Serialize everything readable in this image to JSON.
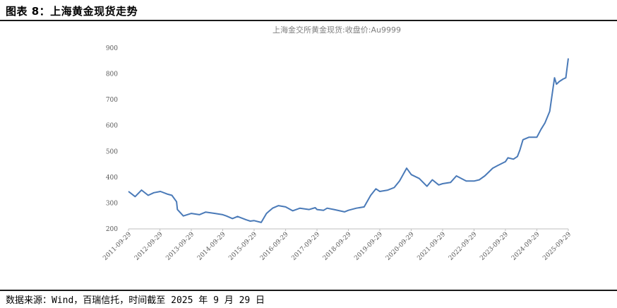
{
  "figure": {
    "label": "图表 8：上海黄金现货走势",
    "source": "数据来源：Wind，百瑞信托，时间截至 2025 年 9 月 29 日"
  },
  "chart_data": {
    "type": "line",
    "title": "上海金交所黄金现货:收盘价:Au9999",
    "xlabel": "",
    "ylabel": "",
    "ylim": [
      200,
      900
    ],
    "yticks": [
      200,
      300,
      400,
      500,
      600,
      700,
      800,
      900
    ],
    "xticks": [
      "2011-09-29",
      "2012-09-29",
      "2013-09-29",
      "2014-09-29",
      "2015-09-29",
      "2016-09-29",
      "2017-09-29",
      "2018-09-29",
      "2019-09-29",
      "2020-09-29",
      "2021-09-29",
      "2022-09-29",
      "2023-09-29",
      "2024-09-29",
      "2025-09-29"
    ],
    "grid": false,
    "legend": "none",
    "line_color": "#4a7ab8",
    "series": [
      {
        "x": [
          "2011-09-29",
          "2011-12-15",
          "2012-02-28",
          "2012-05-15",
          "2012-07-20",
          "2012-10-05",
          "2012-12-20",
          "2013-02-15",
          "2013-04-10",
          "2013-04-20",
          "2013-06-28",
          "2013-09-29",
          "2013-12-31",
          "2014-03-15",
          "2014-06-30",
          "2014-09-29",
          "2014-11-10",
          "2015-01-20",
          "2015-03-20",
          "2015-06-30",
          "2015-08-15",
          "2015-09-29",
          "2015-12-20",
          "2016-02-20",
          "2016-04-30",
          "2016-07-08",
          "2016-09-29",
          "2016-12-20",
          "2017-03-15",
          "2017-06-30",
          "2017-09-08",
          "2017-09-29",
          "2017-12-15",
          "2018-01-25",
          "2018-04-15",
          "2018-08-15",
          "2018-09-29",
          "2018-12-31",
          "2019-03-31",
          "2019-06-15",
          "2019-08-15",
          "2019-09-29",
          "2019-12-31",
          "2020-03-15",
          "2020-05-15",
          "2020-08-06",
          "2020-09-29",
          "2020-12-31",
          "2021-03-31",
          "2021-06-01",
          "2021-08-15",
          "2021-09-29",
          "2021-12-31",
          "2022-03-08",
          "2022-06-30",
          "2022-09-29",
          "2022-11-30",
          "2023-02-01",
          "2023-03-20",
          "2023-05-04",
          "2023-06-30",
          "2023-09-29",
          "2023-10-28",
          "2023-12-31",
          "2024-02-15",
          "2024-03-15",
          "2024-04-20",
          "2024-06-30",
          "2024-09-29",
          "2024-11-15",
          "2024-12-31",
          "2025-02-25",
          "2025-04-22",
          "2025-05-15",
          "2025-06-15",
          "2025-07-31",
          "2025-08-31",
          "2025-09-29"
        ],
        "values": [
          345,
          325,
          350,
          330,
          340,
          345,
          335,
          330,
          305,
          275,
          250,
          260,
          255,
          265,
          260,
          255,
          250,
          240,
          248,
          235,
          230,
          232,
          225,
          260,
          280,
          290,
          285,
          270,
          280,
          275,
          282,
          275,
          272,
          280,
          275,
          266,
          272,
          280,
          285,
          330,
          355,
          345,
          350,
          360,
          385,
          435,
          410,
          395,
          365,
          390,
          370,
          375,
          380,
          405,
          385,
          385,
          390,
          405,
          420,
          435,
          445,
          460,
          475,
          470,
          480,
          505,
          545,
          555,
          555,
          585,
          610,
          655,
          785,
          760,
          770,
          780,
          785,
          860
        ]
      }
    ]
  }
}
